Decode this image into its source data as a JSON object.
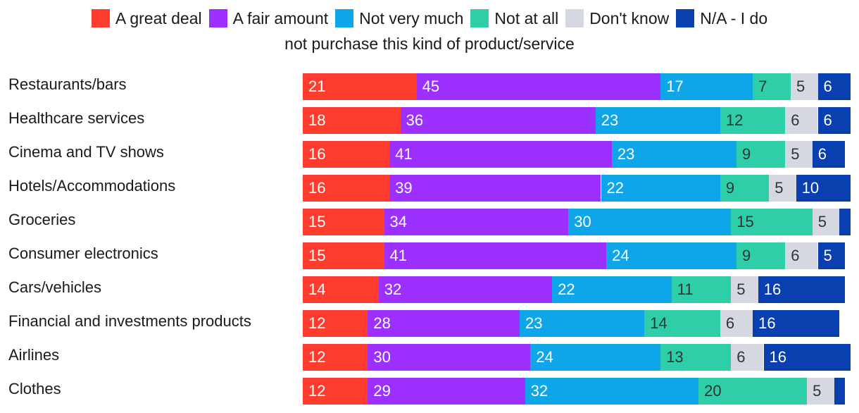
{
  "chart_data": {
    "type": "bar",
    "orientation": "horizontal",
    "stacked": true,
    "title": "",
    "xlabel": "",
    "ylabel": "",
    "xlim": [
      0,
      100
    ],
    "legend_position": "top-center",
    "categories": [
      "Restaurants/bars",
      "Healthcare services",
      "Cinema and TV shows",
      "Hotels/Accommodations",
      "Groceries",
      "Consumer electronics",
      "Cars/vehicles",
      "Financial and investments products",
      "Airlines",
      "Clothes"
    ],
    "series": [
      {
        "name": "A great deal",
        "color": "#ff3d2e",
        "label_color": "#ffffff",
        "values": [
          21,
          18,
          16,
          16,
          15,
          15,
          14,
          12,
          12,
          12
        ]
      },
      {
        "name": "A fair amount",
        "color": "#9b30ff",
        "label_color": "#ffffff",
        "values": [
          45,
          36,
          41,
          39,
          34,
          41,
          32,
          28,
          30,
          29
        ]
      },
      {
        "name": "Not very much",
        "color": "#0ea5e9",
        "label_color": "#ffffff",
        "values": [
          17,
          23,
          23,
          22,
          30,
          24,
          22,
          23,
          24,
          32
        ]
      },
      {
        "name": "Not at all",
        "color": "#2ecfa8",
        "label_color": "#333333",
        "values": [
          7,
          12,
          9,
          9,
          15,
          9,
          11,
          14,
          13,
          20
        ]
      },
      {
        "name": "Don't know",
        "color": "#d5d8e0",
        "label_color": "#333333",
        "values": [
          5,
          6,
          5,
          5,
          5,
          6,
          5,
          6,
          6,
          5
        ]
      },
      {
        "name": "N/A - I do not purchase this kind of product/service",
        "color": "#0a3fb0",
        "label_color": "#ffffff",
        "values": [
          6,
          6,
          6,
          10,
          2,
          5,
          16,
          16,
          16,
          2
        ]
      }
    ],
    "value_labels": [
      [
        "21",
        "45",
        "17",
        "7",
        "5",
        "6"
      ],
      [
        "18",
        "36",
        "23",
        "12",
        "6",
        "6"
      ],
      [
        "16",
        "41",
        "23",
        "9",
        "5",
        "6"
      ],
      [
        "16",
        "39",
        "22",
        "9",
        "5",
        "10"
      ],
      [
        "15",
        "34",
        "30",
        "15",
        "5",
        ""
      ],
      [
        "15",
        "41",
        "24",
        "9",
        "6",
        "5"
      ],
      [
        "14",
        "32",
        "22",
        "11",
        "5",
        "16"
      ],
      [
        "12",
        "28",
        "23",
        "14",
        "6",
        "16"
      ],
      [
        "12",
        "30",
        "24",
        "13",
        "6",
        "16"
      ],
      [
        "12",
        "29",
        "32",
        "20",
        "5",
        ""
      ]
    ]
  }
}
